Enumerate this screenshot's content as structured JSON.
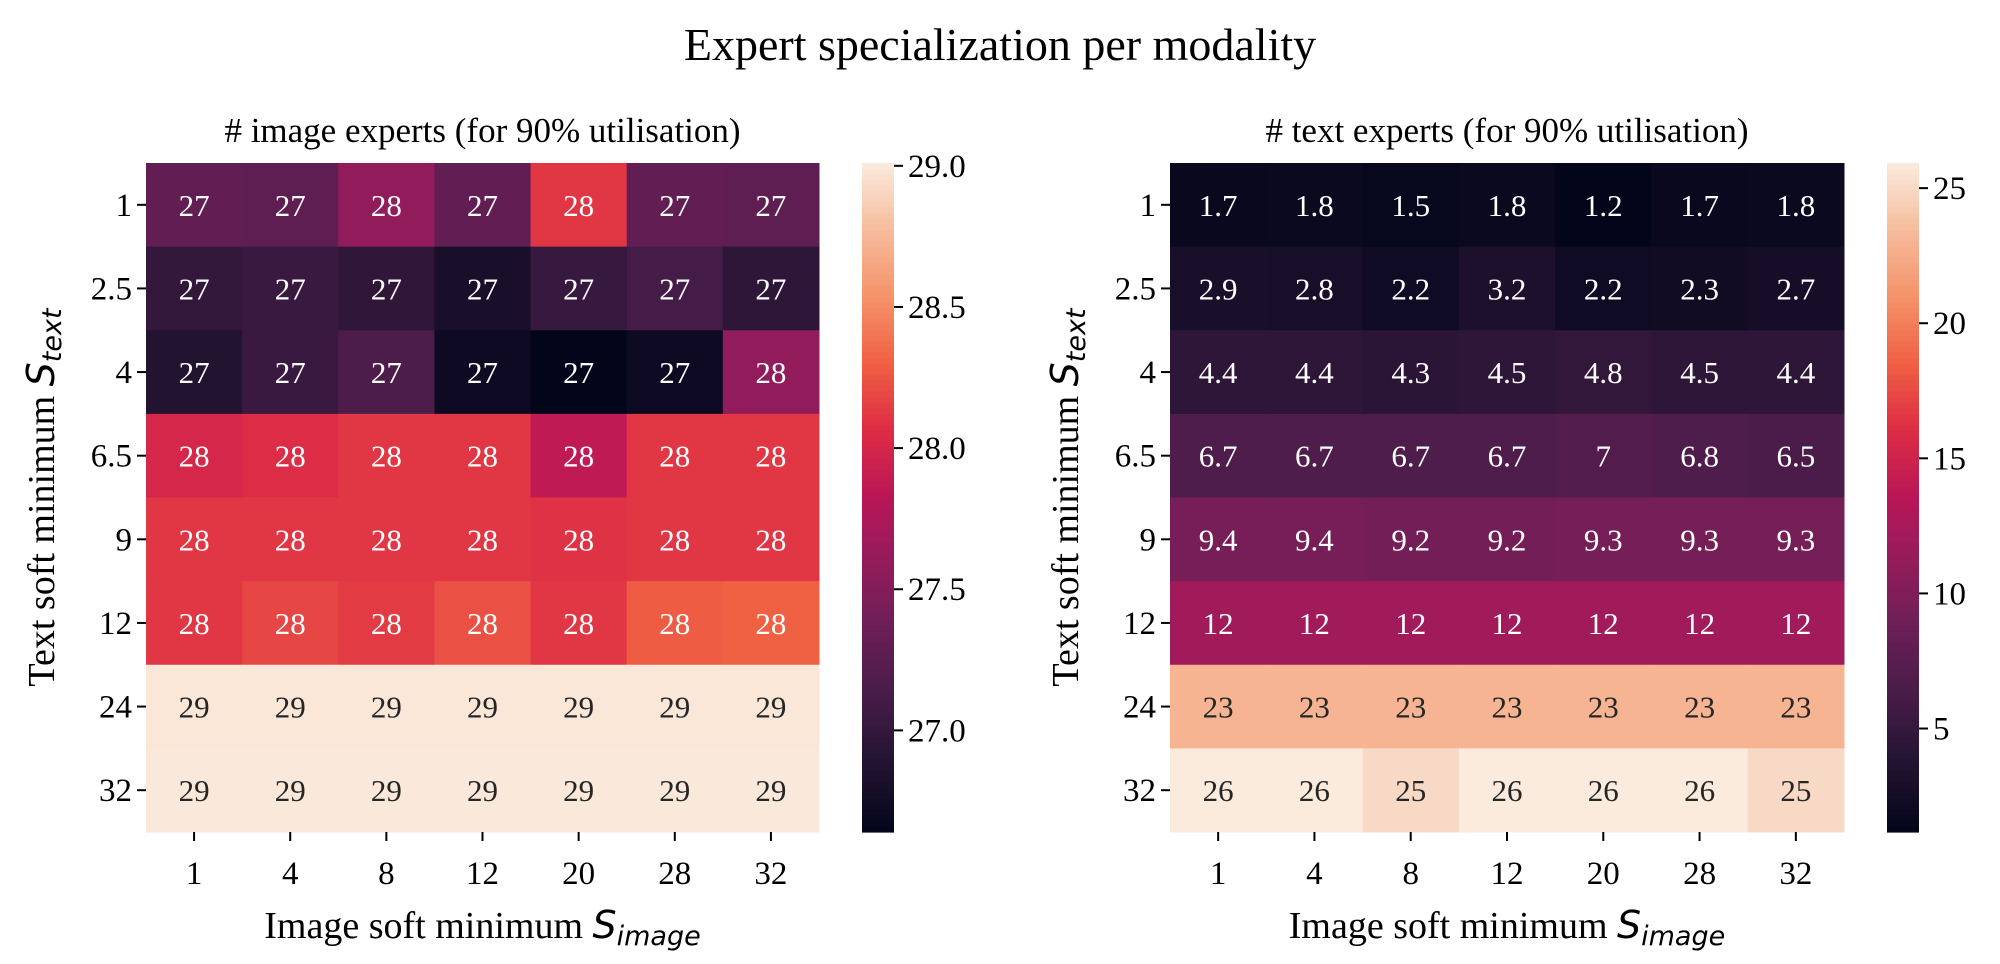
{
  "title": "Expert specialization per modality",
  "colors": {
    "cmap": "rocket",
    "text_dark": "#262626",
    "text_light": "#ffffff"
  },
  "chart_data": [
    {
      "type": "heatmap",
      "title": "# image experts (for 90% utilisation)",
      "xlabel": "Image soft minimum ",
      "xlabel_math": "S",
      "xlabel_sub": "image",
      "ylabel": "Text soft minimum ",
      "ylabel_math": "S",
      "ylabel_sub": "text",
      "x_categories": [
        "1",
        "4",
        "8",
        "12",
        "20",
        "28",
        "32"
      ],
      "y_categories": [
        "1",
        "2.5",
        "4",
        "6.5",
        "9",
        "12",
        "24",
        "32"
      ],
      "values": [
        [
          27.3,
          27.28,
          27.59,
          27.3,
          28.11,
          27.3,
          27.28
        ],
        [
          27.0,
          27.04,
          26.97,
          26.81,
          27.02,
          27.11,
          26.95
        ],
        [
          26.88,
          27.04,
          27.16,
          26.73,
          26.64,
          26.73,
          27.59
        ],
        [
          28.01,
          28.06,
          28.11,
          28.11,
          27.87,
          28.11,
          28.11
        ],
        [
          28.11,
          28.11,
          28.11,
          28.11,
          28.09,
          28.11,
          28.11
        ],
        [
          28.11,
          28.18,
          28.13,
          28.23,
          28.11,
          28.28,
          28.3
        ],
        [
          28.99,
          28.99,
          28.99,
          28.99,
          28.99,
          28.99,
          28.99
        ],
        [
          29.0,
          29.0,
          29.0,
          29.0,
          29.0,
          29.0,
          29.0
        ]
      ],
      "annotations": [
        [
          "27",
          "27",
          "28",
          "27",
          "28",
          "27",
          "27"
        ],
        [
          "27",
          "27",
          "27",
          "27",
          "27",
          "27",
          "27"
        ],
        [
          "27",
          "27",
          "27",
          "27",
          "27",
          "27",
          "28"
        ],
        [
          "28",
          "28",
          "28",
          "28",
          "28",
          "28",
          "28"
        ],
        [
          "28",
          "28",
          "28",
          "28",
          "28",
          "28",
          "28"
        ],
        [
          "28",
          "28",
          "28",
          "28",
          "28",
          "28",
          "28"
        ],
        [
          "29",
          "29",
          "29",
          "29",
          "29",
          "29",
          "29"
        ],
        [
          "29",
          "29",
          "29",
          "29",
          "29",
          "29",
          "29"
        ]
      ],
      "colorbar": {
        "range": [
          26.64,
          29.01
        ],
        "ticks": [
          "29.0",
          "28.5",
          "28.0",
          "27.5",
          "27.0"
        ]
      }
    },
    {
      "type": "heatmap",
      "title": "# text experts (for 90% utilisation)",
      "xlabel": "Image soft minimum ",
      "xlabel_math": "S",
      "xlabel_sub": "image",
      "ylabel": "Text soft minimum ",
      "ylabel_math": "S",
      "ylabel_sub": "text",
      "x_categories": [
        "1",
        "4",
        "8",
        "12",
        "20",
        "28",
        "32"
      ],
      "y_categories": [
        "1",
        "2.5",
        "4",
        "6.5",
        "9",
        "12",
        "24",
        "32"
      ],
      "values": [
        [
          1.7,
          1.8,
          1.5,
          1.8,
          1.2,
          1.7,
          1.8
        ],
        [
          2.9,
          2.8,
          2.2,
          3.2,
          2.2,
          2.3,
          2.7
        ],
        [
          4.4,
          4.4,
          4.3,
          4.5,
          4.8,
          4.5,
          4.4
        ],
        [
          6.7,
          6.7,
          6.7,
          6.7,
          7,
          6.8,
          6.5
        ],
        [
          9.4,
          9.4,
          9.2,
          9.2,
          9.3,
          9.3,
          9.3
        ],
        [
          12,
          12,
          12,
          12,
          12,
          12,
          12
        ],
        [
          23,
          23,
          23,
          23,
          23,
          23,
          23
        ],
        [
          26,
          26,
          25,
          26,
          26,
          26,
          25
        ]
      ],
      "annotations": [
        [
          "1.7",
          "1.8",
          "1.5",
          "1.8",
          "1.2",
          "1.7",
          "1.8"
        ],
        [
          "2.9",
          "2.8",
          "2.2",
          "3.2",
          "2.2",
          "2.3",
          "2.7"
        ],
        [
          "4.4",
          "4.4",
          "4.3",
          "4.5",
          "4.8",
          "4.5",
          "4.4"
        ],
        [
          "6.7",
          "6.7",
          "6.7",
          "6.7",
          "7",
          "6.8",
          "6.5"
        ],
        [
          "9.4",
          "9.4",
          "9.2",
          "9.2",
          "9.3",
          "9.3",
          "9.3"
        ],
        [
          "12",
          "12",
          "12",
          "12",
          "12",
          "12",
          "12"
        ],
        [
          "23",
          "23",
          "23",
          "23",
          "23",
          "23",
          "23"
        ],
        [
          "26",
          "26",
          "25",
          "26",
          "26",
          "26",
          "25"
        ]
      ],
      "colorbar": {
        "range": [
          1.17,
          25.93
        ],
        "ticks": [
          "25",
          "20",
          "15",
          "10",
          "5"
        ]
      }
    }
  ]
}
